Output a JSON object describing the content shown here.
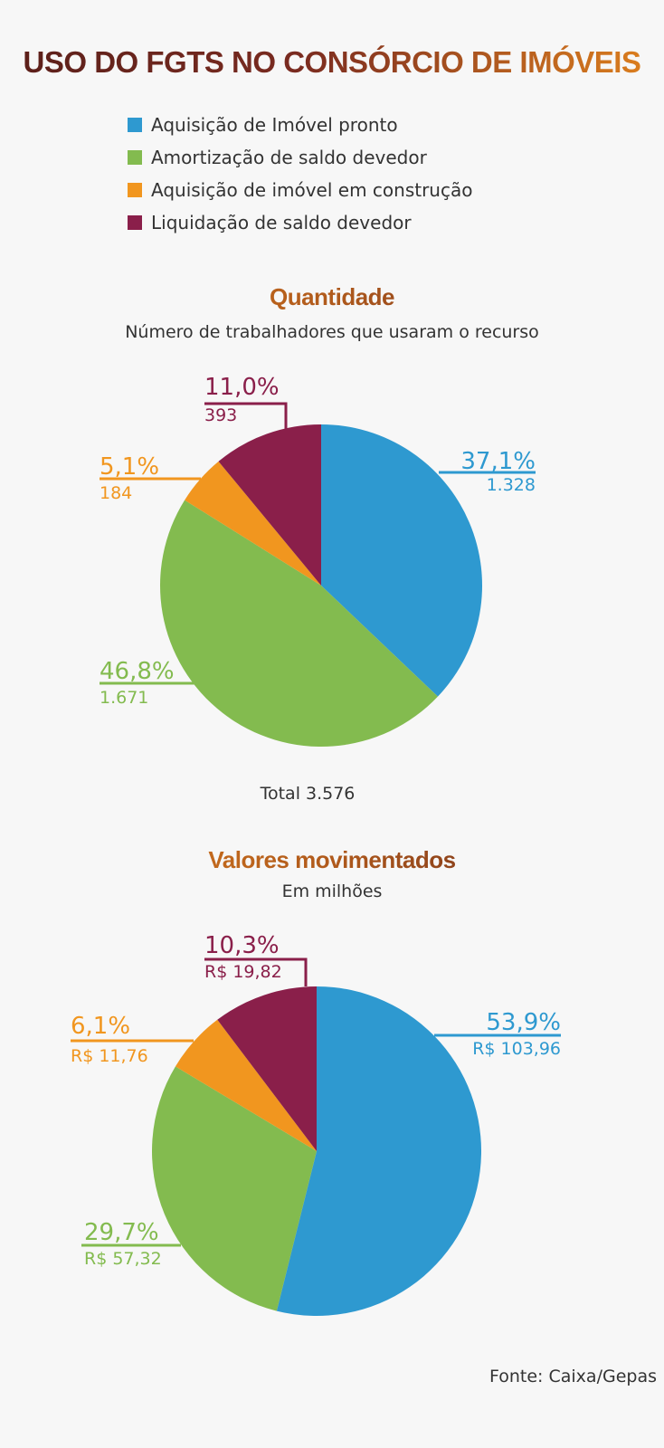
{
  "title": "USO DO FGTS NO CONSÓRCIO DE IMÓVEIS",
  "legend": [
    {
      "label": "Aquisição de Imóvel pronto",
      "color": "#2e99d0"
    },
    {
      "label": "Amortização de saldo devedor",
      "color": "#83bb4f"
    },
    {
      "label": "Aquisição de imóvel em construção",
      "color": "#f1961f"
    },
    {
      "label": "Liquidação de saldo devedor",
      "color": "#8a1f4a"
    }
  ],
  "source": "Fonte: Caixa/Gepas",
  "chart_data": [
    {
      "type": "pie",
      "title": "Quantidade",
      "subtitle": "Número de trabalhadores que usaram o recurso",
      "total_label": "Total 3.576",
      "slices": [
        {
          "category": "Aquisição de Imóvel pronto",
          "percent": 37.1,
          "percent_label": "37,1%",
          "value_label": "1.328",
          "color": "#2e99d0"
        },
        {
          "category": "Amortização de saldo devedor",
          "percent": 46.8,
          "percent_label": "46,8%",
          "value_label": "1.671",
          "color": "#83bb4f"
        },
        {
          "category": "Aquisição de imóvel em construção",
          "percent": 5.1,
          "percent_label": "5,1%",
          "value_label": "184",
          "color": "#f1961f"
        },
        {
          "category": "Liquidação de saldo devedor",
          "percent": 11.0,
          "percent_label": "11,0%",
          "value_label": "393",
          "color": "#8a1f4a"
        }
      ]
    },
    {
      "type": "pie",
      "title": "Valores movimentados",
      "subtitle": "Em milhões",
      "slices": [
        {
          "category": "Aquisição de Imóvel pronto",
          "percent": 53.9,
          "percent_label": "53,9%",
          "value_label": "R$ 103,96",
          "color": "#2e99d0"
        },
        {
          "category": "Amortização de saldo devedor",
          "percent": 29.7,
          "percent_label": "29,7%",
          "value_label": "R$ 57,32",
          "color": "#83bb4f"
        },
        {
          "category": "Aquisição de imóvel em construção",
          "percent": 6.1,
          "percent_label": "6,1%",
          "value_label": "R$ 11,76",
          "color": "#f1961f"
        },
        {
          "category": "Liquidação de saldo devedor",
          "percent": 10.3,
          "percent_label": "10,3%",
          "value_label": "R$ 19,82",
          "color": "#8a1f4a"
        }
      ]
    }
  ]
}
